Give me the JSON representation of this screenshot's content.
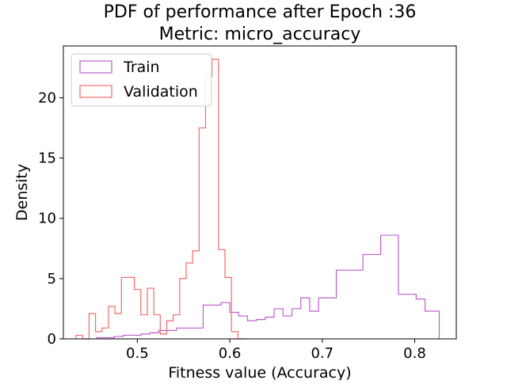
{
  "chart_data": {
    "type": "histogram",
    "title": "PDF of performance after Epoch :36",
    "subtitle": "Metric: micro_accuracy",
    "xlabel": "Fitness value (Accuracy)",
    "ylabel": "Density",
    "xlim": [
      0.42,
      0.845
    ],
    "ylim": [
      0,
      24.3
    ],
    "x_ticks": [
      0.5,
      0.6,
      0.7,
      0.8
    ],
    "x_tick_labels": [
      "0.5",
      "0.6",
      "0.7",
      "0.8"
    ],
    "y_ticks": [
      0,
      5,
      10,
      15,
      20
    ],
    "y_tick_labels": [
      "0",
      "5",
      "10",
      "15",
      "20"
    ],
    "grid": false,
    "legend_position": "top-left",
    "series": [
      {
        "name": "Train",
        "color": "#bf5fcf",
        "edges": [
          0.456,
          0.4656,
          0.4752,
          0.4848,
          0.4944,
          0.504,
          0.5136,
          0.5232,
          0.5328,
          0.5424,
          0.552,
          0.5616,
          0.5712,
          0.5808,
          0.5904,
          0.6,
          0.6096,
          0.6192,
          0.6288,
          0.6384,
          0.648,
          0.6576,
          0.6672,
          0.6768,
          0.6864,
          0.696,
          0.7056,
          0.7152,
          0.7248,
          0.7344,
          0.744,
          0.7536,
          0.7632,
          0.7728,
          0.7824,
          0.792,
          0.8016,
          0.8112,
          0.8208,
          0.8265
        ],
        "values": [
          0.1,
          0.1,
          0.2,
          0.3,
          0.3,
          0.4,
          0.5,
          0.7,
          0.7,
          0.9,
          0.9,
          0.9,
          2.8,
          2.8,
          3.0,
          2.2,
          1.9,
          1.5,
          1.6,
          1.8,
          2.5,
          1.9,
          2.5,
          3.4,
          2.3,
          3.4,
          3.4,
          5.7,
          5.7,
          5.7,
          7.0,
          7.0,
          8.6,
          8.6,
          3.7,
          3.7,
          3.3,
          2.3,
          2.3
        ]
      },
      {
        "name": "Validation",
        "color": "#f26b6b",
        "edges": [
          0.4338,
          0.4408,
          0.4478,
          0.4548,
          0.4618,
          0.4688,
          0.4758,
          0.4828,
          0.4898,
          0.4968,
          0.5038,
          0.5108,
          0.5178,
          0.5248,
          0.5318,
          0.5388,
          0.5458,
          0.5528,
          0.5598,
          0.5668,
          0.5738,
          0.5808,
          0.5878,
          0.5948,
          0.6018,
          0.6088,
          0.6158,
          0.6185
        ],
        "values": [
          0.3,
          0.0,
          2.1,
          0.6,
          0.9,
          2.7,
          2.1,
          5.1,
          5.1,
          4.1,
          2.0,
          4.2,
          2.0,
          0.4,
          1.5,
          2.0,
          5.0,
          6.3,
          7.3,
          17.5,
          21.8,
          23.2,
          7.4,
          5.1,
          0.6,
          0.0,
          0.0
        ]
      }
    ]
  }
}
